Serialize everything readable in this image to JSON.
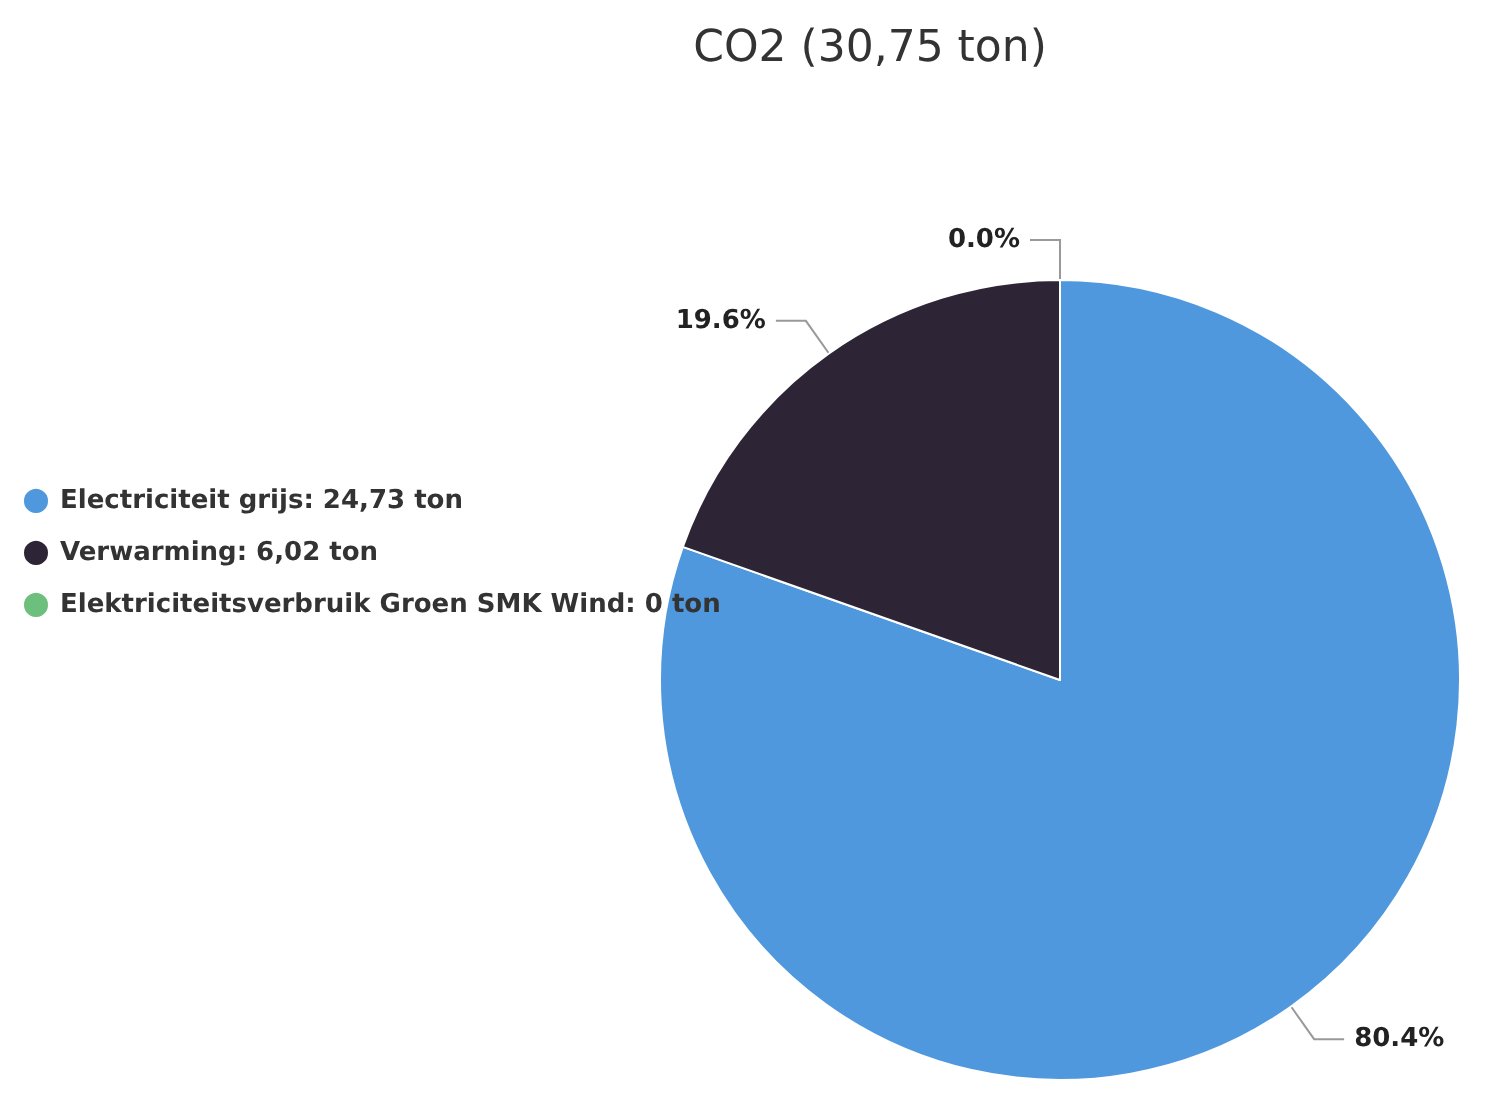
{
  "chart_data": {
    "type": "pie",
    "title": "CO2 (30,75 ton)",
    "categories": [
      "Electriciteit grijs: 24,73 ton",
      "Verwarming: 6,02 ton",
      "Elektriciteitsverbruik Groen SMK Wind: 0 ton"
    ],
    "values": [
      80.4,
      19.6,
      0.0
    ],
    "colors": [
      "#4f98dd",
      "#2d2535",
      "#6cbf7c"
    ],
    "value_labels": [
      "80.4%",
      "19.6%",
      "0.0%"
    ],
    "legend": "left"
  }
}
